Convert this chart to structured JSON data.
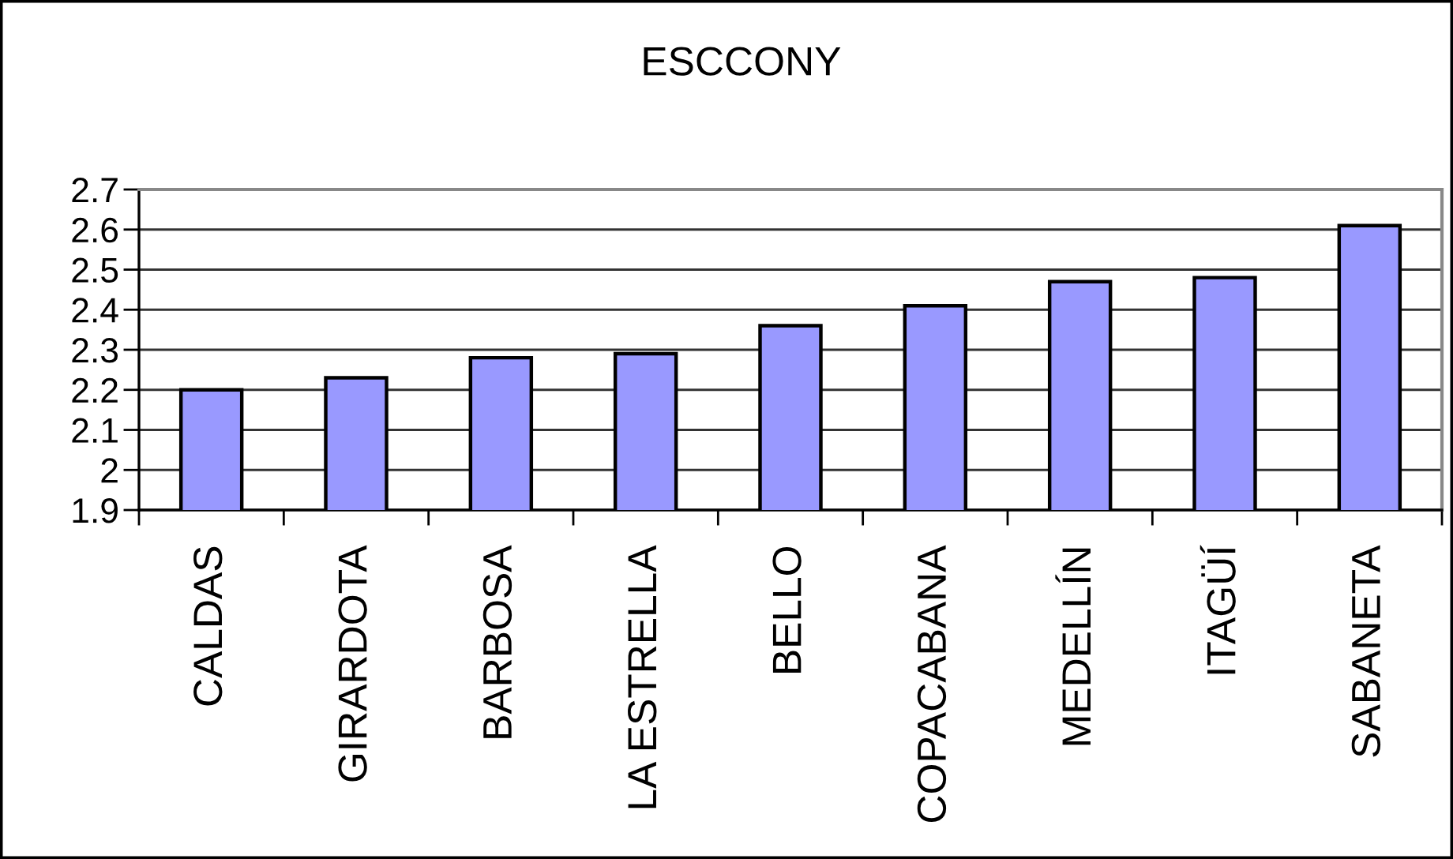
{
  "chart_data": {
    "type": "bar",
    "title": "ESCCONY",
    "categories": [
      "CALDAS",
      "GIRARDOTA",
      "BARBOSA",
      "LA ESTRELLA",
      "BELLO",
      "COPACABANA",
      "MEDELLÍN",
      "ITAGÜÍ",
      "SABANETA"
    ],
    "values": [
      2.2,
      2.23,
      2.28,
      2.29,
      2.36,
      2.41,
      2.47,
      2.48,
      2.61
    ],
    "color": "#9999ff",
    "ylim": [
      1.9,
      2.7
    ],
    "yticks": [
      1.9,
      2,
      2.1,
      2.2,
      2.3,
      2.4,
      2.5,
      2.6,
      2.7
    ],
    "grid": "y",
    "legend": false
  }
}
